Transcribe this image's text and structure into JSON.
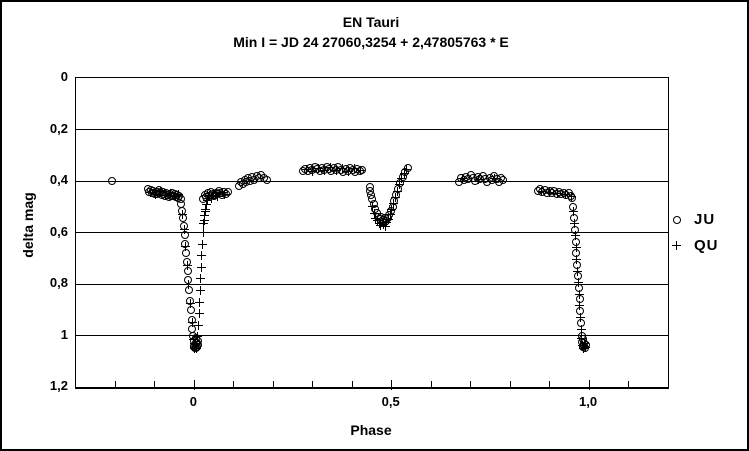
{
  "colors": {
    "foreground": "#000000",
    "background": "#ffffff"
  },
  "chart_data": {
    "type": "scatter",
    "title": "EN Tauri",
    "subtitle": "Min I = JD 24 27060,3254 + 2,47805763 * E",
    "xlabel": "Phase",
    "ylabel": "delta mag",
    "xlim": [
      -0.3,
      1.2
    ],
    "ylim": [
      0,
      1.2
    ],
    "y_inverted": true,
    "grid": "horizontal",
    "legend_position": "right",
    "x_major_ticks": [
      {
        "v": 0.0,
        "label": "0"
      },
      {
        "v": 0.5,
        "label": "0,5"
      },
      {
        "v": 1.0,
        "label": "1,0"
      }
    ],
    "x_minor_ticks": [
      -0.2,
      -0.1,
      0.0,
      0.1,
      0.2,
      0.3,
      0.4,
      0.5,
      0.6,
      0.7,
      0.8,
      0.9,
      1.0,
      1.1
    ],
    "y_ticks": [
      {
        "v": 0.0,
        "label": "0"
      },
      {
        "v": 0.2,
        "label": "0,2"
      },
      {
        "v": 0.4,
        "label": "0,4"
      },
      {
        "v": 0.6,
        "label": "0,6"
      },
      {
        "v": 0.8,
        "label": "0,8"
      },
      {
        "v": 1.0,
        "label": "1"
      },
      {
        "v": 1.2,
        "label": "1,2"
      }
    ],
    "series": [
      {
        "name": "JU",
        "marker": "circle",
        "points": [
          [
            -0.21,
            0.4
          ],
          [
            -0.118,
            0.432
          ],
          [
            -0.114,
            0.441
          ],
          [
            -0.11,
            0.435
          ],
          [
            -0.107,
            0.446
          ],
          [
            -0.104,
            0.438
          ],
          [
            -0.101,
            0.449
          ],
          [
            -0.098,
            0.442
          ],
          [
            -0.095,
            0.452
          ],
          [
            -0.092,
            0.444
          ],
          [
            -0.089,
            0.436
          ],
          [
            -0.086,
            0.448
          ],
          [
            -0.083,
            0.455
          ],
          [
            -0.08,
            0.443
          ],
          [
            -0.077,
            0.451
          ],
          [
            -0.074,
            0.458
          ],
          [
            -0.071,
            0.446
          ],
          [
            -0.068,
            0.454
          ],
          [
            -0.065,
            0.461
          ],
          [
            -0.062,
            0.45
          ],
          [
            -0.059,
            0.458
          ],
          [
            -0.056,
            0.448
          ],
          [
            -0.053,
            0.46
          ],
          [
            -0.05,
            0.452
          ],
          [
            -0.047,
            0.463
          ],
          [
            -0.044,
            0.455
          ],
          [
            -0.041,
            0.466
          ],
          [
            -0.038,
            0.458
          ],
          [
            -0.035,
            0.468
          ],
          [
            -0.033,
            0.49
          ],
          [
            -0.031,
            0.515
          ],
          [
            -0.029,
            0.545
          ],
          [
            -0.027,
            0.575
          ],
          [
            -0.025,
            0.61
          ],
          [
            -0.023,
            0.645
          ],
          [
            -0.021,
            0.68
          ],
          [
            -0.019,
            0.715
          ],
          [
            -0.017,
            0.75
          ],
          [
            -0.015,
            0.785
          ],
          [
            -0.013,
            0.825
          ],
          [
            -0.011,
            0.865
          ],
          [
            -0.009,
            0.9
          ],
          [
            -0.007,
            0.94
          ],
          [
            -0.005,
            0.975
          ],
          [
            -0.004,
            1.0
          ],
          [
            -0.002,
            1.02
          ],
          [
            0.0,
            1.04
          ],
          [
            0.002,
            1.05
          ],
          [
            0.004,
            1.03
          ],
          [
            0.006,
            1.045
          ],
          [
            0.008,
            1.02
          ],
          [
            0.01,
            1.035
          ],
          [
            -0.001,
            1.045
          ],
          [
            0.003,
            1.01
          ],
          [
            0.005,
            1.05
          ],
          [
            0.007,
            1.03
          ],
          [
            0.022,
            0.468
          ],
          [
            0.026,
            0.455
          ],
          [
            0.03,
            0.462
          ],
          [
            0.034,
            0.448
          ],
          [
            0.038,
            0.458
          ],
          [
            0.042,
            0.443
          ],
          [
            0.046,
            0.452
          ],
          [
            0.05,
            0.46
          ],
          [
            0.054,
            0.445
          ],
          [
            0.058,
            0.452
          ],
          [
            0.062,
            0.438
          ],
          [
            0.066,
            0.448
          ],
          [
            0.07,
            0.455
          ],
          [
            0.075,
            0.442
          ],
          [
            0.08,
            0.45
          ],
          [
            0.086,
            0.444
          ],
          [
            0.112,
            0.42
          ],
          [
            0.117,
            0.405
          ],
          [
            0.122,
            0.412
          ],
          [
            0.127,
            0.396
          ],
          [
            0.132,
            0.405
          ],
          [
            0.137,
            0.39
          ],
          [
            0.142,
            0.4
          ],
          [
            0.147,
            0.385
          ],
          [
            0.152,
            0.395
          ],
          [
            0.158,
            0.38
          ],
          [
            0.164,
            0.39
          ],
          [
            0.17,
            0.378
          ],
          [
            0.176,
            0.388
          ],
          [
            0.183,
            0.395
          ],
          [
            0.275,
            0.362
          ],
          [
            0.281,
            0.352
          ],
          [
            0.287,
            0.36
          ],
          [
            0.293,
            0.348
          ],
          [
            0.299,
            0.356
          ],
          [
            0.305,
            0.344
          ],
          [
            0.311,
            0.354
          ],
          [
            0.317,
            0.362
          ],
          [
            0.323,
            0.35
          ],
          [
            0.329,
            0.358
          ],
          [
            0.335,
            0.345
          ],
          [
            0.341,
            0.355
          ],
          [
            0.347,
            0.363
          ],
          [
            0.353,
            0.35
          ],
          [
            0.359,
            0.358
          ],
          [
            0.365,
            0.346
          ],
          [
            0.371,
            0.356
          ],
          [
            0.377,
            0.364
          ],
          [
            0.383,
            0.352
          ],
          [
            0.389,
            0.36
          ],
          [
            0.395,
            0.348
          ],
          [
            0.401,
            0.357
          ],
          [
            0.407,
            0.365
          ],
          [
            0.413,
            0.353
          ],
          [
            0.419,
            0.361
          ],
          [
            0.425,
            0.356
          ],
          [
            0.444,
            0.425
          ],
          [
            0.446,
            0.44
          ],
          [
            0.448,
            0.455
          ],
          [
            0.45,
            0.468
          ],
          [
            0.454,
            0.49
          ],
          [
            0.458,
            0.51
          ],
          [
            0.462,
            0.525
          ],
          [
            0.466,
            0.538
          ],
          [
            0.47,
            0.548
          ],
          [
            0.474,
            0.54
          ],
          [
            0.478,
            0.552
          ],
          [
            0.482,
            0.545
          ],
          [
            0.486,
            0.555
          ],
          [
            0.49,
            0.545
          ],
          [
            0.494,
            0.532
          ],
          [
            0.498,
            0.518
          ],
          [
            0.502,
            0.5
          ],
          [
            0.507,
            0.478
          ],
          [
            0.512,
            0.455
          ],
          [
            0.517,
            0.43
          ],
          [
            0.522,
            0.408
          ],
          [
            0.528,
            0.385
          ],
          [
            0.534,
            0.365
          ],
          [
            0.54,
            0.35
          ],
          [
            0.67,
            0.402
          ],
          [
            0.676,
            0.39
          ],
          [
            0.682,
            0.398
          ],
          [
            0.688,
            0.383
          ],
          [
            0.694,
            0.393
          ],
          [
            0.7,
            0.378
          ],
          [
            0.706,
            0.39
          ],
          [
            0.712,
            0.4
          ],
          [
            0.718,
            0.385
          ],
          [
            0.724,
            0.394
          ],
          [
            0.73,
            0.38
          ],
          [
            0.736,
            0.392
          ],
          [
            0.742,
            0.402
          ],
          [
            0.748,
            0.388
          ],
          [
            0.754,
            0.396
          ],
          [
            0.76,
            0.382
          ],
          [
            0.766,
            0.393
          ],
          [
            0.772,
            0.402
          ],
          [
            0.778,
            0.39
          ],
          [
            0.783,
            0.398
          ],
          [
            0.87,
            0.44
          ],
          [
            0.876,
            0.432
          ],
          [
            0.882,
            0.442
          ],
          [
            0.888,
            0.435
          ],
          [
            0.894,
            0.445
          ],
          [
            0.9,
            0.438
          ],
          [
            0.906,
            0.448
          ],
          [
            0.912,
            0.44
          ],
          [
            0.918,
            0.45
          ],
          [
            0.924,
            0.443
          ],
          [
            0.93,
            0.452
          ],
          [
            0.936,
            0.445
          ],
          [
            0.942,
            0.455
          ],
          [
            0.948,
            0.448
          ],
          [
            0.953,
            0.458
          ],
          [
            0.957,
            0.465
          ],
          [
            0.96,
            0.5
          ],
          [
            0.962,
            0.545
          ],
          [
            0.964,
            0.59
          ],
          [
            0.966,
            0.635
          ],
          [
            0.968,
            0.68
          ],
          [
            0.97,
            0.725
          ],
          [
            0.972,
            0.77
          ],
          [
            0.974,
            0.815
          ],
          [
            0.976,
            0.86
          ],
          [
            0.978,
            0.905
          ],
          [
            0.98,
            0.95
          ],
          [
            0.981,
            1.0
          ],
          [
            0.983,
            1.025
          ],
          [
            0.985,
            1.045
          ],
          [
            0.987,
            1.03
          ],
          [
            0.989,
            1.05
          ],
          [
            0.991,
            1.035
          ],
          [
            0.984,
            1.015
          ],
          [
            0.988,
            1.04
          ]
        ]
      },
      {
        "name": "QU",
        "marker": "plus",
        "points": [
          [
            -0.112,
            0.445
          ],
          [
            -0.098,
            0.452
          ],
          [
            -0.085,
            0.44
          ],
          [
            -0.072,
            0.455
          ],
          [
            -0.06,
            0.447
          ],
          [
            -0.049,
            0.458
          ],
          [
            -0.04,
            0.452
          ],
          [
            -0.03,
            0.53
          ],
          [
            -0.026,
            0.59
          ],
          [
            -0.022,
            0.655
          ],
          [
            -0.018,
            0.73
          ],
          [
            -0.014,
            0.8
          ],
          [
            -0.01,
            0.875
          ],
          [
            -0.006,
            0.95
          ],
          [
            -0.003,
            1.015
          ],
          [
            0.0,
            1.05
          ],
          [
            0.003,
            1.035
          ],
          [
            0.006,
            1.05
          ],
          [
            0.001,
            1.03
          ],
          [
            0.008,
            1.005
          ],
          [
            0.01,
            0.96
          ],
          [
            0.012,
            0.915
          ],
          [
            0.013,
            0.87
          ],
          [
            0.015,
            0.825
          ],
          [
            0.016,
            0.78
          ],
          [
            0.018,
            0.735
          ],
          [
            0.019,
            0.69
          ],
          [
            0.021,
            0.645
          ],
          [
            0.022,
            0.6
          ],
          [
            0.024,
            0.565
          ],
          [
            0.026,
            0.535
          ],
          [
            0.028,
            0.51
          ],
          [
            0.03,
            0.49
          ],
          [
            0.025,
            0.555
          ],
          [
            0.027,
            0.52
          ],
          [
            0.032,
            0.475
          ],
          [
            0.035,
            0.462
          ],
          [
            0.039,
            0.455
          ],
          [
            0.043,
            0.468
          ],
          [
            0.048,
            0.455
          ],
          [
            0.053,
            0.447
          ],
          [
            0.058,
            0.46
          ],
          [
            0.064,
            0.45
          ],
          [
            0.07,
            0.443
          ],
          [
            0.077,
            0.452
          ],
          [
            0.285,
            0.355
          ],
          [
            0.3,
            0.362
          ],
          [
            0.315,
            0.35
          ],
          [
            0.33,
            0.36
          ],
          [
            0.345,
            0.348
          ],
          [
            0.36,
            0.358
          ],
          [
            0.375,
            0.35
          ],
          [
            0.39,
            0.362
          ],
          [
            0.405,
            0.352
          ],
          [
            0.42,
            0.36
          ],
          [
            0.452,
            0.5
          ],
          [
            0.456,
            0.525
          ],
          [
            0.46,
            0.545
          ],
          [
            0.464,
            0.555
          ],
          [
            0.468,
            0.565
          ],
          [
            0.472,
            0.572
          ],
          [
            0.476,
            0.56
          ],
          [
            0.48,
            0.568
          ],
          [
            0.484,
            0.575
          ],
          [
            0.488,
            0.56
          ],
          [
            0.492,
            0.548
          ],
          [
            0.496,
            0.53
          ],
          [
            0.5,
            0.51
          ],
          [
            0.505,
            0.488
          ],
          [
            0.51,
            0.465
          ],
          [
            0.515,
            0.44
          ],
          [
            0.52,
            0.415
          ],
          [
            0.526,
            0.39
          ],
          [
            0.532,
            0.37
          ],
          [
            0.538,
            0.355
          ],
          [
            0.68,
            0.392
          ],
          [
            0.72,
            0.396
          ],
          [
            0.76,
            0.39
          ],
          [
            0.88,
            0.44
          ],
          [
            0.9,
            0.445
          ],
          [
            0.92,
            0.448
          ],
          [
            0.94,
            0.452
          ],
          [
            0.955,
            0.46
          ],
          [
            0.961,
            0.52
          ],
          [
            0.963,
            0.565
          ],
          [
            0.965,
            0.61
          ],
          [
            0.967,
            0.66
          ],
          [
            0.969,
            0.705
          ],
          [
            0.971,
            0.75
          ],
          [
            0.973,
            0.795
          ],
          [
            0.975,
            0.84
          ],
          [
            0.977,
            0.885
          ],
          [
            0.979,
            0.93
          ],
          [
            0.98,
            0.975
          ],
          [
            0.982,
            1.01
          ],
          [
            0.984,
            1.04
          ],
          [
            0.986,
            1.05
          ],
          [
            0.988,
            1.03
          ],
          [
            0.99,
            1.045
          ]
        ]
      }
    ]
  }
}
